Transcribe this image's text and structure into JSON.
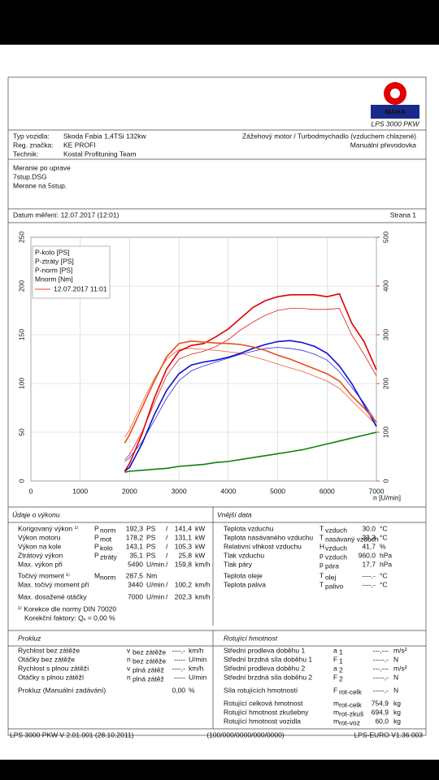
{
  "header": {
    "logo": "MAHA",
    "product": "LPS 3000 PKW"
  },
  "vehicle": {
    "rows": [
      [
        "Typ vozidla:",
        "Skoda Fabia 1,4TSi 132kw"
      ],
      [
        "Reg. značka:",
        "KE PROFI"
      ],
      [
        "Technik:",
        "Kostal Profituning Team"
      ]
    ],
    "engine": "Zážehový motor / Turbodmychadlo (vzduchem chlazené)",
    "gearbox": "Manuální převodovka"
  },
  "notes": [
    "Meranie po uprave",
    "7stup.DSG",
    "Merane na 5stup."
  ],
  "date": "Datum měření: 12.07.2017 (12:01)",
  "page": "Strana 1",
  "chart_data": {
    "type": "line",
    "xlabel": "n [U/min]",
    "x": [
      1900,
      2000,
      2250,
      2500,
      2750,
      3000,
      3250,
      3500,
      3750,
      4000,
      4250,
      4500,
      4750,
      5000,
      5250,
      5500,
      5750,
      6000,
      6250,
      6500,
      6750,
      7000
    ],
    "xlim": [
      0,
      7000
    ],
    "xticks": [
      0,
      1000,
      2000,
      3000,
      4000,
      5000,
      6000,
      7000
    ],
    "ylim": [
      0,
      250
    ],
    "yticks": [
      0,
      50,
      100,
      150,
      200,
      250
    ],
    "y2lim": [
      0,
      500
    ],
    "y2ticks": [
      0,
      100,
      200,
      300,
      400,
      500
    ],
    "y2color": "#e8501a",
    "grid": true,
    "series": [
      {
        "name": "P-kolo [PS]",
        "color": "#1010d0",
        "values": [
          10,
          14,
          38,
          68,
          93,
          110,
          119,
          122,
          124,
          127,
          131,
          136,
          140,
          143,
          144,
          142,
          138,
          131,
          118,
          100,
          78,
          56
        ]
      },
      {
        "name": "P-ztráty [PS]",
        "color": "#108010",
        "values": [
          9,
          10,
          11,
          12,
          13,
          15,
          16,
          17,
          19,
          20,
          22,
          24,
          26,
          28,
          30,
          32,
          35,
          38,
          41,
          44,
          47,
          50
        ]
      },
      {
        "name": "P-norm [PS]",
        "color": "#e00000",
        "values": [
          10,
          18,
          48,
          85,
          115,
          133,
          139,
          141,
          148,
          156,
          167,
          178,
          185,
          189,
          191,
          191,
          191,
          189,
          192,
          162,
          143,
          114
        ]
      },
      {
        "name": "Mnorm [Nm]",
        "color": "#e8501a",
        "axis": "y2",
        "values": [
          78,
          95,
          150,
          205,
          255,
          282,
          287,
          285,
          283,
          282,
          280,
          275,
          268,
          258,
          250,
          240,
          230,
          220,
          205,
          175,
          150,
          120
        ]
      }
    ],
    "comparison": {
      "name": "12.07.2017 11:01",
      "color": "#e00000",
      "series": [
        {
          "color": "#3030e0",
          "values": [
            20,
            24,
            40,
            62,
            85,
            103,
            113,
            118,
            122,
            126,
            130,
            133,
            136,
            137,
            136,
            134,
            130,
            124,
            112,
            96,
            80,
            60
          ]
        },
        {
          "color": "#e02020",
          "values": [
            22,
            27,
            50,
            80,
            108,
            125,
            130,
            133,
            138,
            145,
            155,
            163,
            170,
            175,
            177,
            177,
            176,
            176,
            177,
            150,
            130,
            108
          ]
        },
        {
          "color": "#f06030",
          "axis": "y2",
          "values": [
            90,
            105,
            160,
            210,
            250,
            270,
            272,
            270,
            268,
            265,
            262,
            255,
            248,
            240,
            232,
            225,
            215,
            205,
            190,
            165,
            140,
            115
          ]
        }
      ]
    }
  },
  "performance": {
    "title": "Údaje o výkonu",
    "rows": [
      {
        "label": "Korigovaný výkon ¹⁾",
        "sym": "P",
        "sub": "norm",
        "v1": "192,3",
        "u1": "PS",
        "sep": "/",
        "v2": "141,4",
        "u2": "kW",
        "color": "#e00000"
      },
      {
        "label": "Výkon motoru",
        "sym": "P",
        "sub": "mot",
        "v1": "178,2",
        "u1": "PS",
        "sep": "/",
        "v2": "131,1",
        "u2": "kW",
        "color": "#e00000"
      },
      {
        "label": "Výkon na kole",
        "sym": "P",
        "sub": "kolo",
        "v1": "143,1",
        "u1": "PS",
        "sep": "/",
        "v2": "105,3",
        "u2": "kW",
        "color": "#1010d0"
      },
      {
        "label": "Ztrátový výkon",
        "sym": "P",
        "sub": "ztráty",
        "v1": "35,1",
        "u1": "PS",
        "sep": "/",
        "v2": "25,8",
        "u2": "kW",
        "color": "#108010"
      },
      {
        "label": "Max. výkon při",
        "v1": "5490",
        "u1": "U/min",
        "sep": "/",
        "v2": "159,8",
        "u2": "km/h",
        "value_color": "#888888"
      },
      {
        "label": "Točivý moment ¹⁾",
        "sym": "M",
        "sub": "norm",
        "v1": "287,5",
        "u1": "Nm",
        "color": "#e00000"
      },
      {
        "label": "Max. točivý moment při",
        "v1": "3440",
        "u1": "U/min",
        "sep": "/",
        "v2": "100,2",
        "u2": "km/h",
        "value_color": "#888888"
      },
      {
        "label": "Max. dosažené otáčky",
        "v1": "7000",
        "u1": "U/min",
        "sep": "/",
        "v2": "202,3",
        "u2": "km/h",
        "value_color": "#888888"
      }
    ],
    "footnote": [
      "¹⁾ Korekce dle normy DIN 70020",
      "Korekční faktory: Qᵥ = 0,00 %"
    ]
  },
  "external": {
    "title": "Vnější data",
    "rows": [
      {
        "label": "Teplota vzduchu",
        "sym": "T",
        "sub": "vzduch",
        "value": "30,0",
        "unit": "°C"
      },
      {
        "label": "Teplota nasávaného vzduchu",
        "sym": "T",
        "sub": "nasávaný vzduch",
        "value": "33,3",
        "unit": "°C"
      },
      {
        "label": "Relativní vlhkost vzduchu",
        "sym": "H",
        "sub": "vzduch",
        "value": "41,7",
        "unit": "%"
      },
      {
        "label": "Tlak vzduchu",
        "sym": "p",
        "sub": "vzduch",
        "value": "960,0",
        "unit": "hPa"
      },
      {
        "label": "Tlak páry",
        "sym": "p",
        "sub": "pára",
        "value": "17,7",
        "unit": "hPa"
      },
      {
        "label": "Teplota oleje",
        "sym": "T",
        "sub": "olej",
        "value": "----,-",
        "unit": "°C"
      },
      {
        "label": "Teplota paliva",
        "sym": "T",
        "sub": "palivo",
        "value": "----,-",
        "unit": "°C"
      }
    ]
  },
  "slip": {
    "title": "Prokluz",
    "rows": [
      {
        "label": "Rychlost bez zátěže",
        "sym": "v",
        "sub": "bez zátěže",
        "value": "----,-",
        "unit": "km/h"
      },
      {
        "label": "Otáčky bez zátěže",
        "sym": "n",
        "sub": "bez zátěže",
        "value": "-----",
        "unit": "U/min"
      },
      {
        "label": "Rychlost s plnou zátěží",
        "sym": "v",
        "sub": "plná zátěž",
        "value": "----,-",
        "unit": "km/h"
      },
      {
        "label": "Otáčky s plnou zátěží",
        "sym": "n",
        "sub": "plná zátěž",
        "value": "-----",
        "unit": "U/min"
      },
      {
        "label": "Prokluz (Manuální zadávání)",
        "value": "0,00",
        "unit": "%"
      }
    ]
  },
  "rotating": {
    "title": "Rotující hmotnost",
    "rows": [
      {
        "label": "Střední prodleva doběhu 1",
        "sym": "a",
        "sub": "1",
        "value": "---,---",
        "unit": "m/s²"
      },
      {
        "label": "Střední brzdná síla doběhu 1",
        "sym": "F",
        "sub": "1",
        "value": "-----,-",
        "unit": "N"
      },
      {
        "label": "Střední prodleva doběhu 2",
        "sym": "a",
        "sub": "2",
        "value": "---,---",
        "unit": "m/s²"
      },
      {
        "label": "Střední brzdná síla doběhu 2",
        "sym": "F",
        "sub": "2",
        "value": "-----,-",
        "unit": "N"
      },
      {
        "label": "Síla rotujících hmotností",
        "sym": "F",
        "sub": "rot-celk",
        "value": "-----,-",
        "unit": "N"
      },
      {
        "label": "Rotující celková hmotnost",
        "sym": "m",
        "sub": "rot-celk",
        "value": "754,9",
        "unit": "kg"
      },
      {
        "label": "Rotující hmotnost zkušebny",
        "sym": "m",
        "sub": "rot-zkuš",
        "value": "694,9",
        "unit": "kg"
      },
      {
        "label": "Rotující hmotnost vozidla",
        "sym": "m",
        "sub": "rot-voz",
        "value": "60,0",
        "unit": "kg"
      }
    ]
  },
  "footer": [
    "LPS 3000 PKW V 2.01.001 (28.10.2011)",
    "(100/000/0000/000/0000)",
    "LPS-EURO V1.36.003"
  ]
}
